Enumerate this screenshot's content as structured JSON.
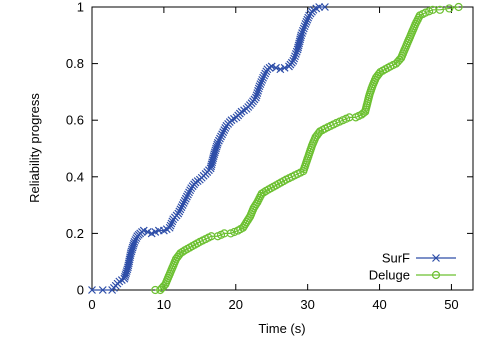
{
  "chart_data": {
    "type": "line",
    "xlabel": "Time (s)",
    "ylabel": "Reliability progress",
    "xlim": [
      0,
      53
    ],
    "ylim": [
      0,
      1
    ],
    "xticks": [
      "0",
      "10",
      "20",
      "30",
      "40",
      "50"
    ],
    "yticks": [
      "0",
      "0.2",
      "0.4",
      "0.6",
      "0.8",
      "1"
    ],
    "grid": false,
    "legend_position": "bottom-right",
    "series": [
      {
        "name": "SurF",
        "color": "#2e4ea8",
        "marker": "x",
        "points": [
          [
            0,
            0.0
          ],
          [
            1.5,
            0.0
          ],
          [
            2.8,
            0.0
          ],
          [
            3.8,
            0.03
          ],
          [
            4.5,
            0.04
          ],
          [
            5.0,
            0.08
          ],
          [
            5.4,
            0.13
          ],
          [
            5.9,
            0.17
          ],
          [
            6.3,
            0.19
          ],
          [
            6.7,
            0.2
          ],
          [
            7.2,
            0.21
          ],
          [
            8.3,
            0.2
          ],
          [
            9.3,
            0.21
          ],
          [
            10.0,
            0.21
          ],
          [
            10.8,
            0.22
          ],
          [
            11.3,
            0.25
          ],
          [
            12.0,
            0.27
          ],
          [
            12.6,
            0.3
          ],
          [
            13.2,
            0.33
          ],
          [
            13.8,
            0.36
          ],
          [
            14.4,
            0.38
          ],
          [
            15.0,
            0.39
          ],
          [
            15.8,
            0.41
          ],
          [
            16.5,
            0.43
          ],
          [
            17.0,
            0.48
          ],
          [
            17.5,
            0.52
          ],
          [
            18.1,
            0.55
          ],
          [
            18.7,
            0.58
          ],
          [
            19.4,
            0.6
          ],
          [
            20.1,
            0.61
          ],
          [
            20.8,
            0.63
          ],
          [
            21.5,
            0.64
          ],
          [
            22.2,
            0.66
          ],
          [
            22.8,
            0.68
          ],
          [
            23.3,
            0.72
          ],
          [
            23.8,
            0.75
          ],
          [
            24.4,
            0.78
          ],
          [
            25.0,
            0.79
          ],
          [
            26.2,
            0.78
          ],
          [
            27.4,
            0.79
          ],
          [
            28.0,
            0.81
          ],
          [
            28.6,
            0.85
          ],
          [
            29.1,
            0.9
          ],
          [
            29.7,
            0.94
          ],
          [
            30.2,
            0.97
          ],
          [
            30.8,
            0.99
          ],
          [
            31.6,
            1.0
          ],
          [
            32.4,
            1.0
          ]
        ]
      },
      {
        "name": "Deluge",
        "color": "#6cc031",
        "marker": "o",
        "points": [
          [
            8.8,
            0.0
          ],
          [
            9.5,
            0.0
          ],
          [
            10.2,
            0.02
          ],
          [
            10.7,
            0.05
          ],
          [
            11.2,
            0.08
          ],
          [
            11.7,
            0.11
          ],
          [
            12.3,
            0.13
          ],
          [
            12.9,
            0.14
          ],
          [
            13.6,
            0.15
          ],
          [
            14.3,
            0.16
          ],
          [
            15.0,
            0.17
          ],
          [
            15.8,
            0.18
          ],
          [
            16.6,
            0.19
          ],
          [
            17.5,
            0.19
          ],
          [
            18.4,
            0.2
          ],
          [
            19.3,
            0.2
          ],
          [
            20.3,
            0.21
          ],
          [
            21.0,
            0.22
          ],
          [
            21.5,
            0.24
          ],
          [
            22.0,
            0.26
          ],
          [
            22.5,
            0.29
          ],
          [
            23.0,
            0.31
          ],
          [
            23.6,
            0.34
          ],
          [
            24.2,
            0.35
          ],
          [
            24.9,
            0.36
          ],
          [
            25.6,
            0.37
          ],
          [
            26.3,
            0.38
          ],
          [
            27.0,
            0.39
          ],
          [
            27.8,
            0.4
          ],
          [
            28.6,
            0.41
          ],
          [
            29.4,
            0.42
          ],
          [
            29.8,
            0.45
          ],
          [
            30.2,
            0.48
          ],
          [
            30.6,
            0.51
          ],
          [
            31.1,
            0.54
          ],
          [
            31.7,
            0.56
          ],
          [
            32.4,
            0.57
          ],
          [
            33.2,
            0.58
          ],
          [
            34.0,
            0.59
          ],
          [
            34.9,
            0.6
          ],
          [
            35.8,
            0.61
          ],
          [
            36.7,
            0.61
          ],
          [
            37.5,
            0.62
          ],
          [
            38.0,
            0.63
          ],
          [
            38.3,
            0.66
          ],
          [
            38.6,
            0.69
          ],
          [
            39.0,
            0.72
          ],
          [
            39.5,
            0.75
          ],
          [
            40.1,
            0.77
          ],
          [
            40.8,
            0.78
          ],
          [
            41.5,
            0.79
          ],
          [
            42.3,
            0.8
          ],
          [
            43.0,
            0.82
          ],
          [
            43.5,
            0.85
          ],
          [
            44.0,
            0.88
          ],
          [
            44.5,
            0.91
          ],
          [
            45.0,
            0.94
          ],
          [
            45.6,
            0.97
          ],
          [
            46.4,
            0.98
          ],
          [
            47.4,
            0.99
          ],
          [
            48.4,
            0.99
          ],
          [
            51.0,
            1.0
          ]
        ]
      }
    ]
  }
}
